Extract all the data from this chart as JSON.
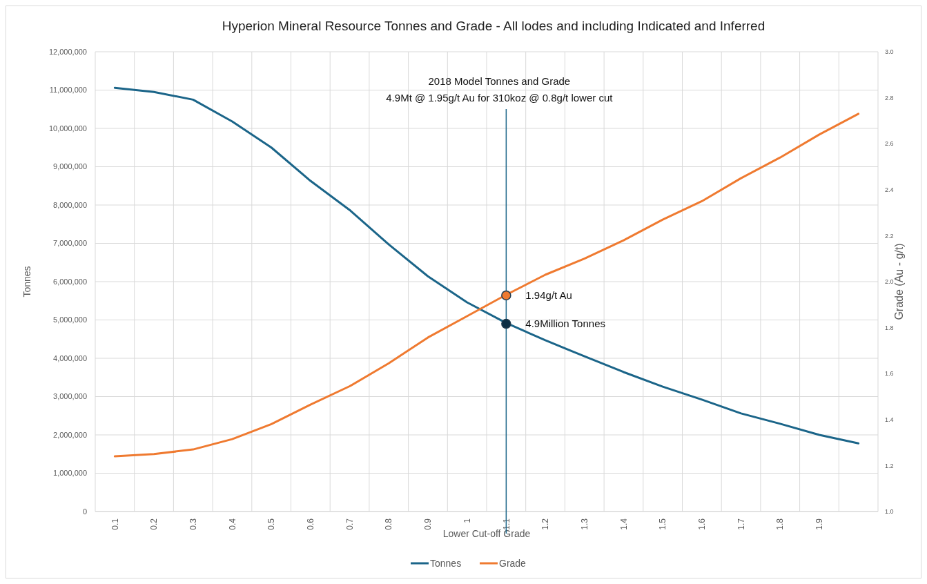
{
  "chart_data": {
    "type": "line",
    "title": "Hyperion Mineral Resource Tonnes and Grade - All lodes and including Indicated and Inferred",
    "xlabel": "Lower Cut-off Grade",
    "ylabel": "Tonnes",
    "y2label": "Grade (Au - g/t)",
    "categories": [
      "0.1",
      "0.2",
      "0.3",
      "0.4",
      "0.5",
      "0.6",
      "0.7",
      "0.8",
      "0.9",
      "1",
      "1.1",
      "1.2",
      "1.3",
      "1.4",
      "1.5",
      "1.6",
      "1.7",
      "1.8",
      "1.9",
      null
    ],
    "series": [
      {
        "name": "Tonnes",
        "color": "#1b6589",
        "values": [
          11060000,
          10950000,
          10750000,
          10180000,
          9500000,
          8630000,
          7870000,
          6970000,
          6140000,
          5460000,
          4920000,
          4470000,
          4050000,
          3640000,
          3260000,
          2920000,
          2560000,
          2290000,
          2000000,
          1780000
        ]
      },
      {
        "name": "Grade",
        "color": "#ef7a30",
        "axis": "y2",
        "values": [
          1.24,
          1.25,
          1.27,
          1.315,
          1.38,
          1.465,
          1.545,
          1.645,
          1.757,
          1.85,
          1.943,
          2.03,
          2.1,
          2.18,
          2.27,
          2.35,
          2.45,
          2.54,
          2.64,
          2.73
        ]
      },
      {
        "type": "scatter",
        "marker": "circle",
        "color": "#0d2f45",
        "x": [
          "1.1"
        ],
        "values": [
          4900000
        ]
      },
      {
        "type": "scatter",
        "marker": "circle",
        "color": "#ef7a30",
        "axis": "y2",
        "x": [
          "1.1"
        ],
        "values": [
          1.94
        ]
      }
    ],
    "ylim": [
      0,
      12000000
    ],
    "yticks": [
      {
        "value": 0,
        "label": "0"
      },
      {
        "value": 1000000,
        "label": "1,000,000"
      },
      {
        "value": 2000000,
        "label": "2,000,000"
      },
      {
        "value": 3000000,
        "label": "3,000,000"
      },
      {
        "value": 4000000,
        "label": "4,000,000"
      },
      {
        "value": 5000000,
        "label": "5,000,000"
      },
      {
        "value": 6000000,
        "label": "6,000,000"
      },
      {
        "value": 7000000,
        "label": "7,000,000"
      },
      {
        "value": 8000000,
        "label": "8,000,000"
      },
      {
        "value": 9000000,
        "label": "9,000,000"
      },
      {
        "value": 10000000,
        "label": "10,000,000"
      },
      {
        "value": 11000000,
        "label": "11,000,000"
      },
      {
        "value": 12000000,
        "label": "12,000,000"
      }
    ],
    "y2lim": [
      1,
      3
    ],
    "y2ticks": [
      {
        "value": 1,
        "label": "1.0"
      },
      1.2,
      1.4,
      1.6,
      1.8,
      {
        "value": 2,
        "label": "2.0"
      },
      2.2,
      2.4,
      2.6,
      2.8,
      {
        "value": 3,
        "label": "3.0"
      }
    ],
    "ref_lines": [
      {
        "axis": "x",
        "value": "1.1",
        "color": "#1b6589"
      }
    ],
    "annotations": [
      "2018 Model Tonnes and Grade",
      "4.9Mt @ 1.95g/t Au for 310koz @ 0.8g/t lower cut",
      "1.94g/t Au",
      {
        "text": "4.9Million Tonnes",
        "x": "1.1",
        "y": 4900000
      }
    ],
    "grid": true,
    "legend": "bottom",
    "marker": "none",
    "line_style": "solid"
  }
}
